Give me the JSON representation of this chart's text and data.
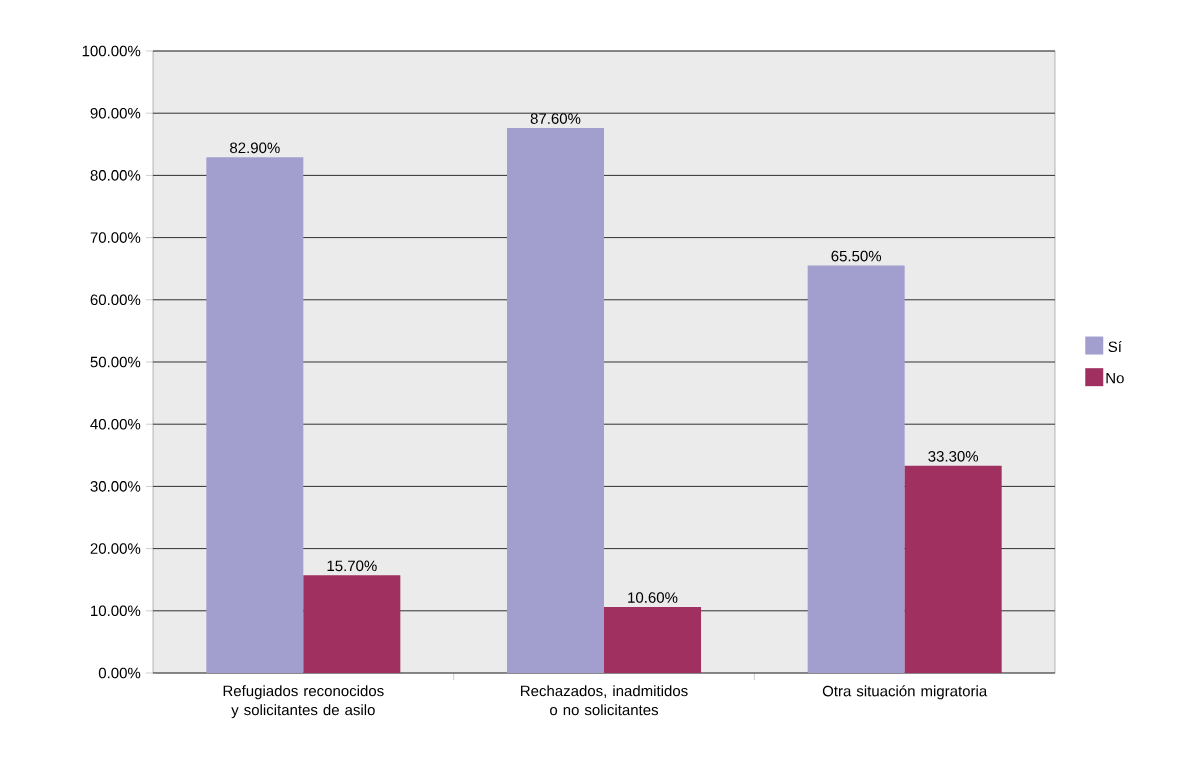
{
  "chart_data": {
    "type": "bar",
    "categories": [
      "Refugiados reconocidos y solicitantes de asilo",
      "Rechazados, inadmitidos o no solicitantes",
      "Otra situación migratoria"
    ],
    "series": [
      {
        "name": "Sí",
        "color": "#a29fcf",
        "values": [
          82.9,
          87.6,
          65.5
        ],
        "value_labels": [
          "82.90%",
          "87.60%",
          "65.50%"
        ]
      },
      {
        "name": "No",
        "color": "#a0305f",
        "values": [
          15.7,
          10.6,
          33.3
        ],
        "value_labels": [
          "15.70%",
          "10.60%",
          "33.30%"
        ]
      }
    ],
    "ylim": [
      0,
      100
    ],
    "yticks": [
      {
        "value": 0,
        "label": "0.00%"
      },
      {
        "value": 10,
        "label": "10.00%"
      },
      {
        "value": 20,
        "label": "20.00%"
      },
      {
        "value": 30,
        "label": "30.00%"
      },
      {
        "value": 40,
        "label": "40.00%"
      },
      {
        "value": 50,
        "label": "50.00%"
      },
      {
        "value": 60,
        "label": "60.00%"
      },
      {
        "value": 70,
        "label": "70.00%"
      },
      {
        "value": 80,
        "label": "80.00%"
      },
      {
        "value": 90,
        "label": "90.00%"
      },
      {
        "value": 100,
        "label": "100.00%"
      }
    ],
    "grid": "y",
    "legend": "right"
  }
}
